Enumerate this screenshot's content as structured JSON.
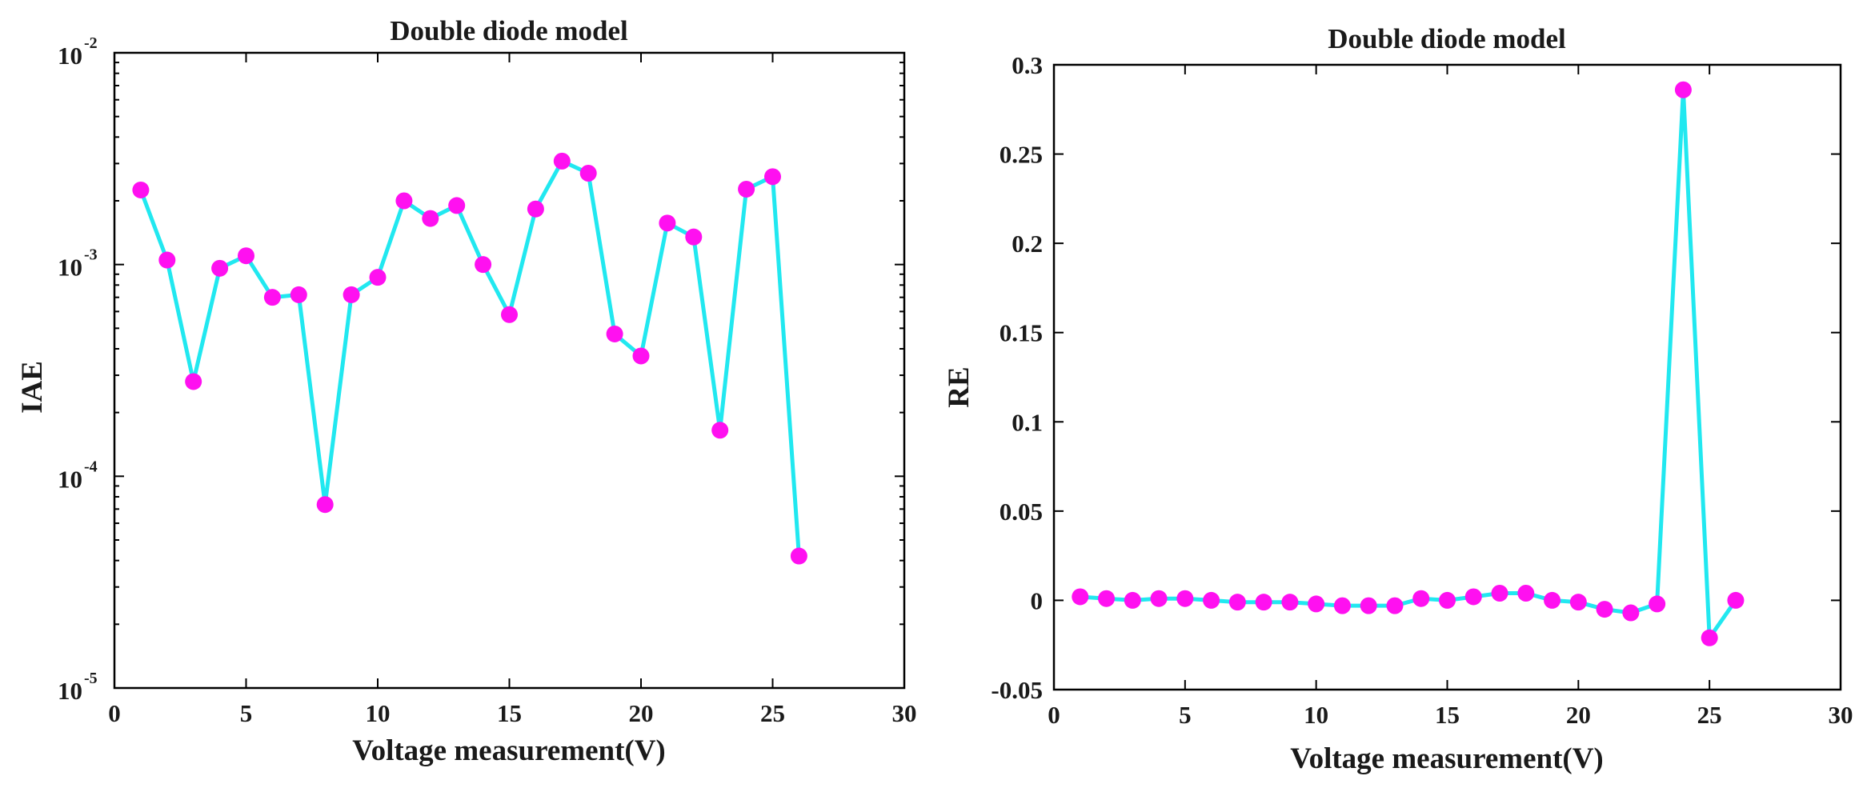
{
  "chart_data": [
    {
      "type": "line",
      "title": "Double diode model",
      "xlabel": "Voltage measurement(V)",
      "ylabel": "IAE",
      "yscale": "log",
      "xlim": [
        0,
        30
      ],
      "ylim": [
        1e-05,
        0.01
      ],
      "x_ticks": [
        "0",
        "5",
        "10",
        "15",
        "20",
        "25",
        "30"
      ],
      "y_ticks": [
        {
          "base": "10",
          "exponent": "-5"
        },
        {
          "base": "10",
          "exponent": "-4"
        },
        {
          "base": "10",
          "exponent": "-3"
        },
        {
          "base": "10",
          "exponent": "-2"
        }
      ],
      "line_color": "#21e8f0",
      "marker_color": "#ff10f0",
      "x": [
        1,
        2,
        3,
        4,
        5,
        6,
        7,
        8,
        9,
        10,
        11,
        12,
        13,
        14,
        15,
        16,
        17,
        18,
        19,
        20,
        21,
        22,
        23,
        24,
        25,
        26
      ],
      "values": [
        0.00225,
        0.00105,
        0.00028,
        0.00096,
        0.0011,
        0.0007,
        0.00072,
        7.35e-05,
        0.00072,
        0.00087,
        0.002,
        0.00165,
        0.0019,
        0.001,
        0.00058,
        0.00183,
        0.00308,
        0.0027,
        0.00047,
        0.00037,
        0.00157,
        0.00135,
        0.000165,
        0.00227,
        0.0026,
        4.2e-05
      ]
    },
    {
      "type": "line",
      "title": "Double diode model",
      "xlabel": "Voltage measurement(V)",
      "ylabel": "RE",
      "yscale": "linear",
      "xlim": [
        0,
        30
      ],
      "ylim": [
        -0.05,
        0.3
      ],
      "x_ticks": [
        "0",
        "5",
        "10",
        "15",
        "20",
        "25",
        "30"
      ],
      "y_ticks": [
        "-0.05",
        "0",
        "0.05",
        "0.1",
        "0.15",
        "0.2",
        "0.25",
        "0.3"
      ],
      "line_color": "#21e8f0",
      "marker_color": "#ff10f0",
      "x": [
        1,
        2,
        3,
        4,
        5,
        6,
        7,
        8,
        9,
        10,
        11,
        12,
        13,
        14,
        15,
        16,
        17,
        18,
        19,
        20,
        21,
        22,
        23,
        24,
        25,
        26
      ],
      "values": [
        0.002,
        0.001,
        0.0,
        0.001,
        0.001,
        0.0,
        -0.001,
        -0.001,
        -0.001,
        -0.002,
        -0.003,
        -0.003,
        -0.003,
        0.001,
        0.0,
        0.002,
        0.004,
        0.004,
        0.0,
        -0.001,
        -0.005,
        -0.007,
        -0.002,
        0.286,
        -0.021,
        0.0
      ]
    }
  ]
}
